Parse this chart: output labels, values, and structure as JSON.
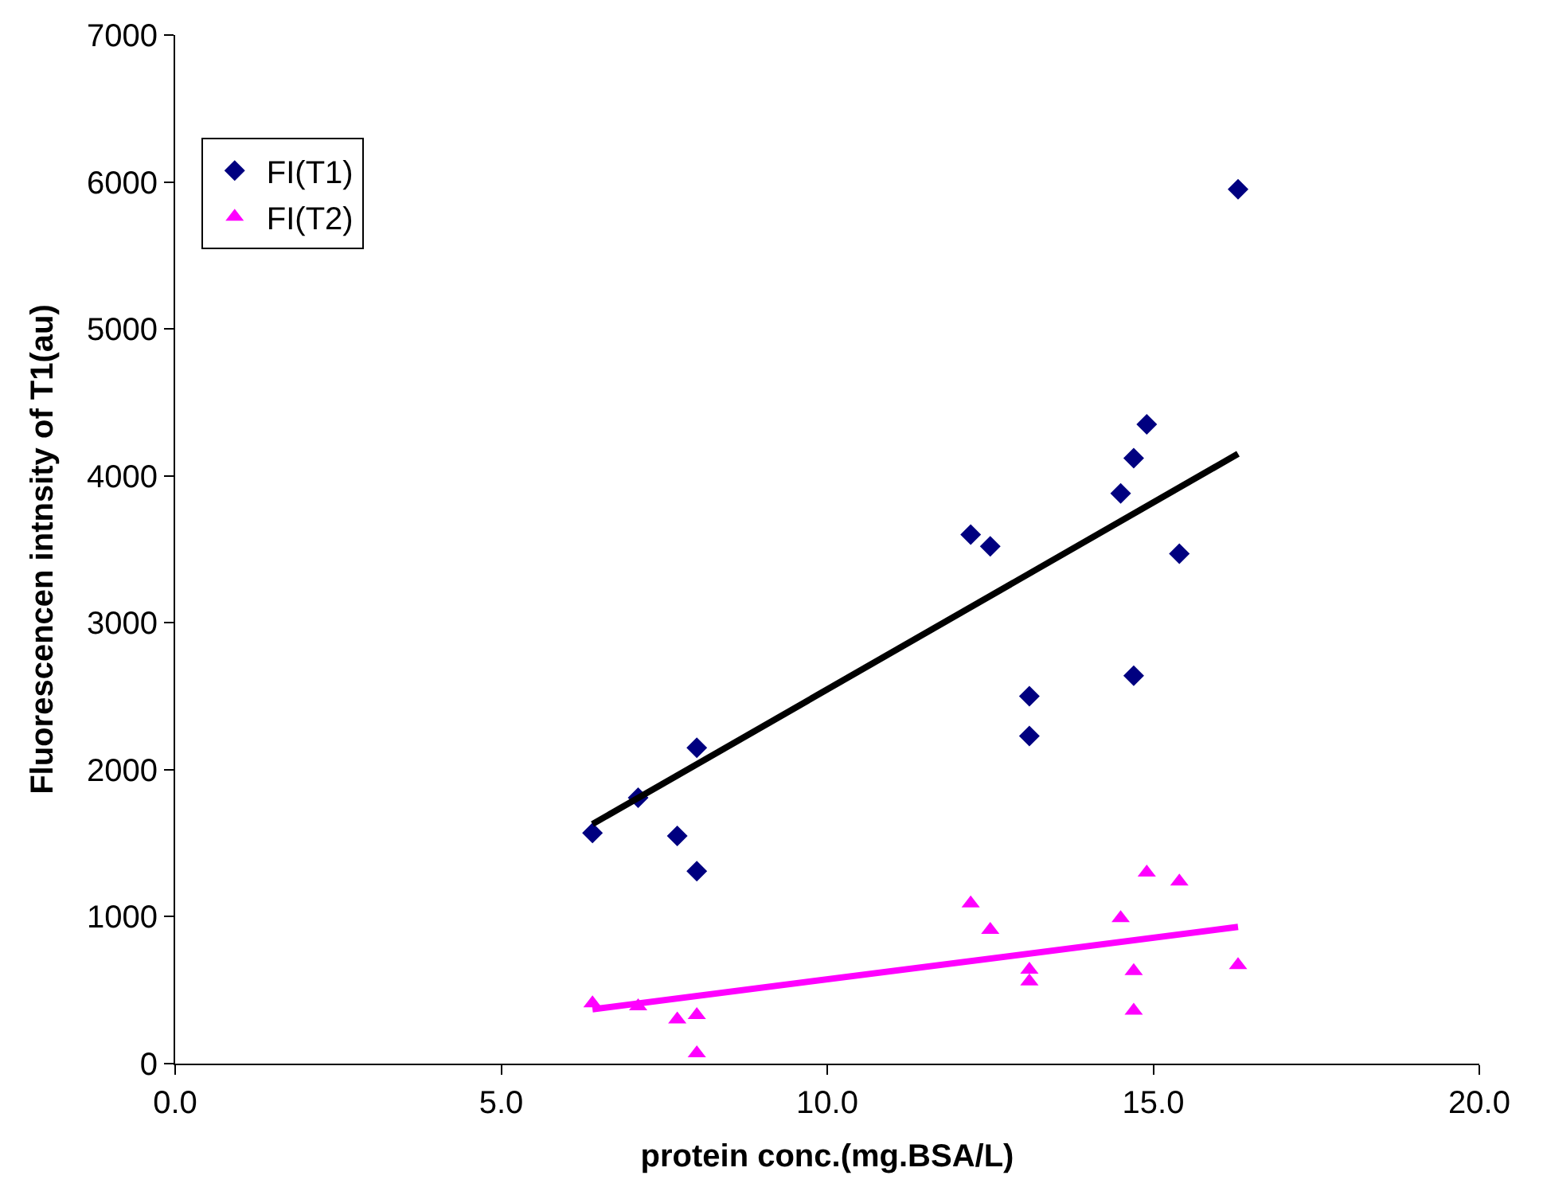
{
  "chart_data": {
    "type": "scatter",
    "xlabel": "protein conc.(mg.BSA/L)",
    "ylabel": "Fluorescencen intnsity of T1(au)",
    "xlim": [
      0,
      20
    ],
    "xticks": [
      {
        "value": 0,
        "label": "0.0"
      },
      {
        "value": 5,
        "label": "5.0"
      },
      {
        "value": 10,
        "label": "10.0"
      },
      {
        "value": 15,
        "label": "15.0"
      },
      {
        "value": 20,
        "label": "20.0"
      }
    ],
    "ylim": [
      0,
      7000
    ],
    "yticks": [
      0,
      1000,
      2000,
      3000,
      4000,
      5000,
      6000,
      7000
    ],
    "legend": "top left",
    "series": [
      {
        "name": "FI(T1)",
        "color": "#000080",
        "marker": "diamond",
        "x": [
          6.4,
          7.1,
          7.7,
          8.0,
          8.0,
          12.2,
          12.5,
          13.1,
          13.1,
          14.5,
          14.7,
          14.7,
          14.9,
          15.4,
          16.3
        ],
        "values": [
          1570,
          1810,
          1550,
          2150,
          1310,
          3600,
          3520,
          2500,
          2230,
          3880,
          4120,
          2640,
          4350,
          3470,
          5950
        ]
      },
      {
        "name": "FI(T2)",
        "color": "#ff00ff",
        "marker": "triangle",
        "x": [
          6.4,
          7.1,
          7.7,
          8.0,
          8.0,
          12.2,
          12.5,
          13.1,
          13.1,
          14.5,
          14.7,
          14.7,
          14.9,
          15.4,
          16.3
        ],
        "values": [
          410,
          390,
          300,
          330,
          70,
          1090,
          910,
          640,
          560,
          990,
          630,
          360,
          1300,
          1240,
          670
        ]
      },
      {
        "type": "line",
        "color": "#000000",
        "x": [
          6.4,
          16.3
        ],
        "values": [
          1630,
          4150
        ]
      },
      {
        "type": "line",
        "color": "#ff00ff",
        "x": [
          6.4,
          16.3
        ],
        "values": [
          370,
          930
        ]
      }
    ]
  }
}
